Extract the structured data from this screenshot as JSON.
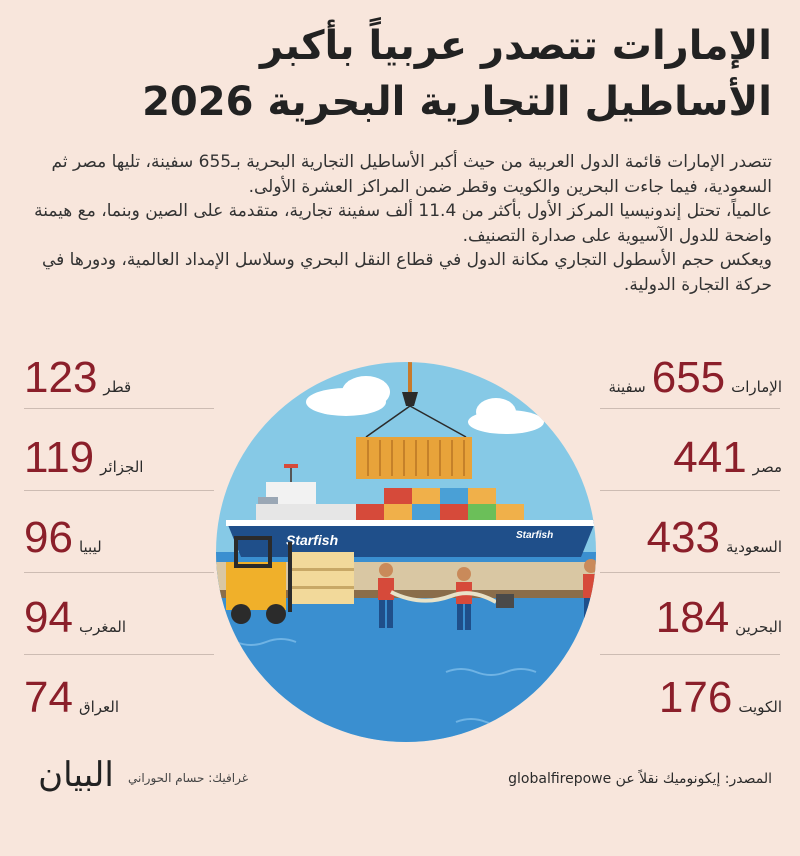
{
  "title": {
    "line1": "الإمارات تتصدر عربياً بأكبر",
    "line2": "الأساطيل التجارية البحرية 2026"
  },
  "paragraphs": [
    "تتصدر الإمارات قائمة الدول العربية من حيث أكبر الأساطيل التجارية البحرية بـ655 سفينة، تليها مصر ثم السعودية، فيما جاءت البحرين والكويت وقطر ضمن المراكز العشرة الأولى.",
    "عالمياً، تحتل إندونيسيا المركز الأول بأكثر من 11.4 ألف سفينة تجارية، متقدمة على الصين وبنما، مع هيمنة واضحة للدول الآسيوية على صدارة التصنيف.",
    "ويعكس حجم الأسطول التجاري مكانة الدول في قطاع النقل البحري وسلاسل الإمداد العالمية، ودورها في حركة التجارة الدولية."
  ],
  "right_stats": [
    {
      "name": "الإمارات",
      "value": "655",
      "unit": "سفينة"
    },
    {
      "name": "مصر",
      "value": "441",
      "unit": ""
    },
    {
      "name": "السعودية",
      "value": "433",
      "unit": ""
    },
    {
      "name": "البحرين",
      "value": "184",
      "unit": ""
    },
    {
      "name": "الكويت",
      "value": "176",
      "unit": ""
    }
  ],
  "left_stats": [
    {
      "name": "قطر",
      "value": "123"
    },
    {
      "name": "الجزائر",
      "value": "119"
    },
    {
      "name": "ليبيا",
      "value": "96"
    },
    {
      "name": "المغرب",
      "value": "94"
    },
    {
      "name": "العراق",
      "value": "74"
    }
  ],
  "ship_name": "Starfish",
  "footer": {
    "source": "المصدر: إيكونوميك نقلاً عن globalfirepowe",
    "credit": "غرافيك: حسام الحوراني",
    "logo": "البيان"
  },
  "colors": {
    "background": "#f8e6dc",
    "accent_number": "#8b1f2a",
    "sea": "#3a8fd0",
    "sky": "#8fcde8"
  }
}
